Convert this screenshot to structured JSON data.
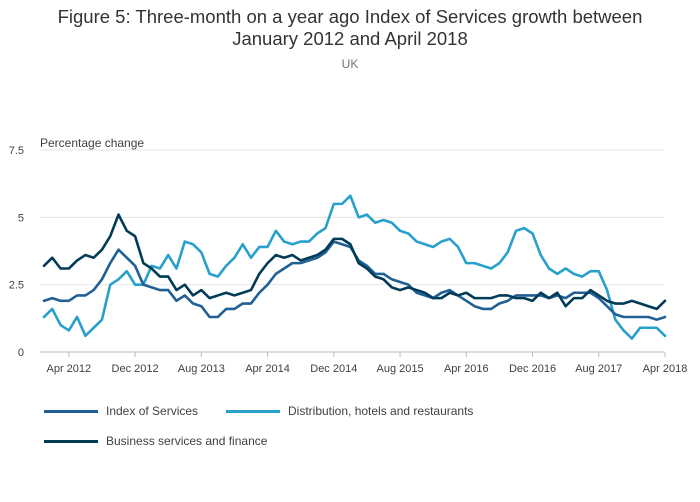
{
  "header": {
    "title_line1": "Figure 5: Three-month on a year ago Index of Services growth between",
    "title_line2": "January 2012 and April 2018",
    "subtitle": "UK"
  },
  "chart_data": {
    "type": "line",
    "ylabel": "Percentage change",
    "ylim": [
      0,
      7.5
    ],
    "yticks": [
      0,
      2.5,
      5,
      7.5
    ],
    "ytick_labels": [
      "0",
      "2.5",
      "5",
      "7.5"
    ],
    "grid": true,
    "legend_position": "bottom",
    "x_start": "Jan 2012",
    "x_end": "Apr 2018",
    "xtick_labels": [
      "Apr 2012",
      "Dec 2012",
      "Aug 2013",
      "Apr 2014",
      "Dec 2014",
      "Aug 2015",
      "Apr 2016",
      "Dec 2016",
      "Aug 2017",
      "Apr 2018"
    ],
    "series": [
      {
        "name": "Index of Services",
        "color": "#206095",
        "values": [
          1.9,
          2.0,
          1.9,
          1.9,
          2.1,
          2.1,
          2.3,
          2.7,
          3.3,
          3.8,
          3.5,
          3.2,
          2.5,
          2.4,
          2.3,
          2.3,
          1.9,
          2.1,
          1.8,
          1.7,
          1.3,
          1.3,
          1.6,
          1.6,
          1.8,
          1.8,
          2.2,
          2.5,
          2.9,
          3.1,
          3.3,
          3.3,
          3.4,
          3.5,
          3.7,
          4.1,
          4.0,
          3.9,
          3.4,
          3.2,
          2.9,
          2.9,
          2.7,
          2.6,
          2.5,
          2.2,
          2.1,
          2.0,
          2.2,
          2.3,
          2.1,
          1.9,
          1.7,
          1.6,
          1.6,
          1.8,
          1.9,
          2.1,
          2.1,
          2.1,
          2.1,
          2.0,
          2.1,
          2.0,
          2.2,
          2.2,
          2.2,
          2.0,
          1.7,
          1.4,
          1.3,
          1.3,
          1.3,
          1.3,
          1.2,
          1.3
        ]
      },
      {
        "name": "Distribution, hotels and restaurants",
        "color": "#27a0cc",
        "values": [
          1.3,
          1.6,
          1.0,
          0.8,
          1.3,
          0.6,
          0.9,
          1.2,
          2.5,
          2.7,
          3.0,
          2.5,
          2.5,
          3.2,
          3.1,
          3.6,
          3.1,
          4.1,
          4.0,
          3.7,
          2.9,
          2.8,
          3.2,
          3.5,
          4.0,
          3.5,
          3.9,
          3.9,
          4.5,
          4.1,
          4.0,
          4.1,
          4.1,
          4.4,
          4.6,
          5.5,
          5.5,
          5.8,
          5.0,
          5.1,
          4.8,
          4.9,
          4.8,
          4.5,
          4.4,
          4.1,
          4.0,
          3.9,
          4.1,
          4.2,
          3.9,
          3.3,
          3.3,
          3.2,
          3.1,
          3.3,
          3.7,
          4.5,
          4.6,
          4.4,
          3.6,
          3.1,
          2.9,
          3.1,
          2.9,
          2.8,
          3.0,
          3.0,
          2.3,
          1.2,
          0.8,
          0.5,
          0.9,
          0.9,
          0.9,
          0.6
        ]
      },
      {
        "name": "Business services and finance",
        "color": "#003c57",
        "values": [
          3.2,
          3.5,
          3.1,
          3.1,
          3.4,
          3.6,
          3.5,
          3.8,
          4.3,
          5.1,
          4.5,
          4.3,
          3.3,
          3.1,
          2.8,
          2.8,
          2.3,
          2.5,
          2.1,
          2.3,
          2.0,
          2.1,
          2.2,
          2.1,
          2.2,
          2.3,
          2.9,
          3.3,
          3.6,
          3.5,
          3.6,
          3.4,
          3.5,
          3.6,
          3.8,
          4.2,
          4.2,
          4.0,
          3.3,
          3.1,
          2.8,
          2.7,
          2.4,
          2.3,
          2.4,
          2.3,
          2.2,
          2.0,
          2.0,
          2.2,
          2.1,
          2.2,
          2.0,
          2.0,
          2.0,
          2.1,
          2.1,
          2.0,
          2.0,
          1.9,
          2.2,
          2.0,
          2.2,
          1.7,
          2.0,
          2.0,
          2.3,
          2.1,
          1.9,
          1.8,
          1.8,
          1.9,
          1.8,
          1.7,
          1.6,
          1.9
        ]
      }
    ]
  }
}
